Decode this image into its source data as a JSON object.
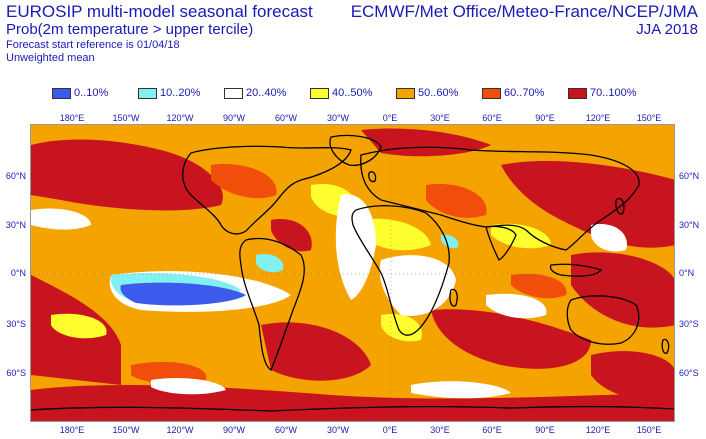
{
  "header": {
    "title_line1": "EUROSIP multi-model seasonal forecast",
    "title_line2": "Prob(2m temperature > upper tercile)",
    "forecast_start": "Forecast start reference is 01/04/18",
    "weighting": "Unweighted mean",
    "centres": "ECMWF/Met Office/Meteo-France/NCEP/JMA",
    "season": "JJA 2018"
  },
  "legend": [
    {
      "label": "0..10%",
      "color": "#3c5aeb"
    },
    {
      "label": "10..20%",
      "color": "#80f0f0"
    },
    {
      "label": "20..40%",
      "color": "#ffffff"
    },
    {
      "label": "40..50%",
      "color": "#ffff30"
    },
    {
      "label": "50..60%",
      "color": "#f5a300"
    },
    {
      "label": "60..70%",
      "color": "#f04e0a"
    },
    {
      "label": "70..100%",
      "color": "#c8141e"
    }
  ],
  "axes": {
    "longitude_labels": [
      "180°E",
      "150°W",
      "120°W",
      "90°W",
      "60°W",
      "30°W",
      "0°E",
      "30°E",
      "60°E",
      "90°E",
      "120°E",
      "150°E"
    ],
    "latitude_labels": [
      "60°N",
      "30°N",
      "0°N",
      "30°S",
      "60°S"
    ]
  }
}
